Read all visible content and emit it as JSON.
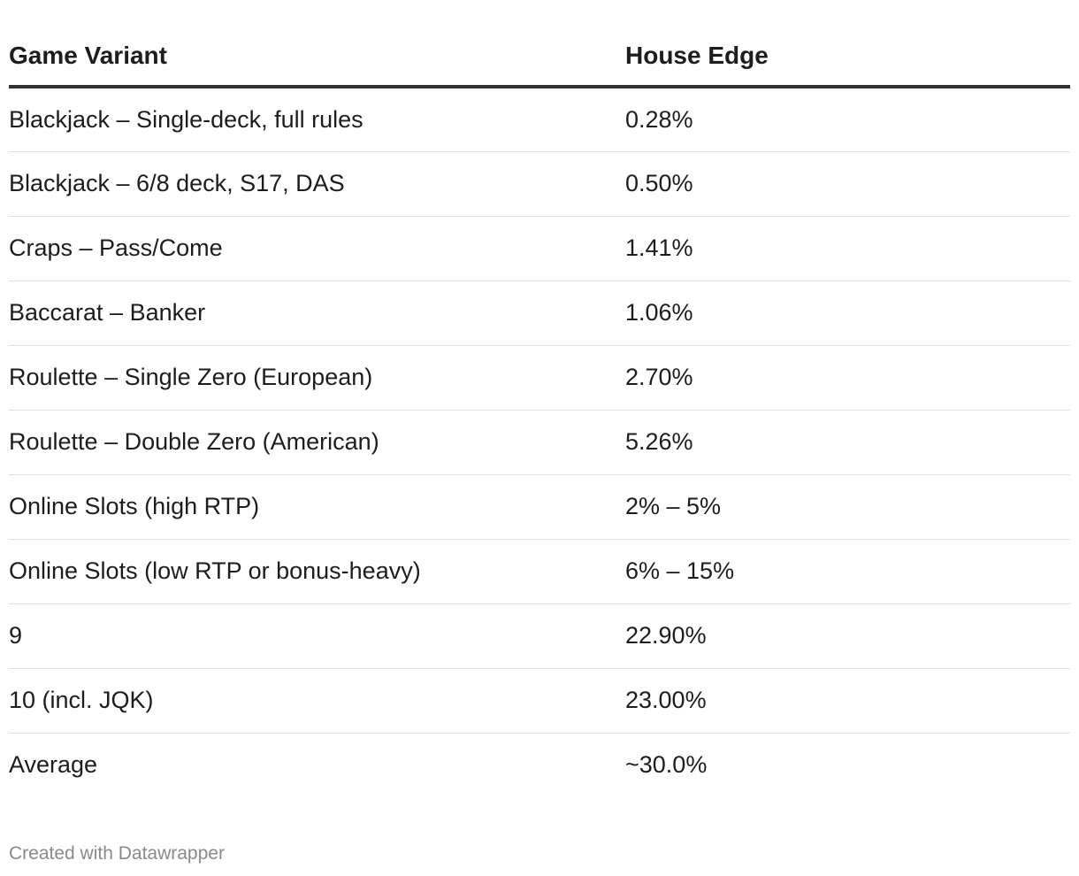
{
  "chart_data": {
    "type": "table",
    "columns": [
      "Game Variant",
      "House Edge"
    ],
    "rows": [
      [
        "Blackjack – Single-deck, full rules",
        "0.28%"
      ],
      [
        "Blackjack – 6/8 deck, S17, DAS",
        "0.50%"
      ],
      [
        "Craps – Pass/Come",
        "1.41%"
      ],
      [
        "Baccarat – Banker",
        "1.06%"
      ],
      [
        "Roulette – Single Zero (European)",
        "2.70%"
      ],
      [
        "Roulette – Double Zero (American)",
        "5.26%"
      ],
      [
        "Online Slots (high RTP)",
        "2% – 5%"
      ],
      [
        "Online Slots (low RTP or bonus-heavy)",
        "6% – 15%"
      ],
      [
        "9",
        "22.90%"
      ],
      [
        "10 (incl. JQK)",
        "23.00%"
      ],
      [
        "Average",
        "~30.0%"
      ]
    ]
  },
  "footer": {
    "credit": "Created with Datawrapper"
  }
}
